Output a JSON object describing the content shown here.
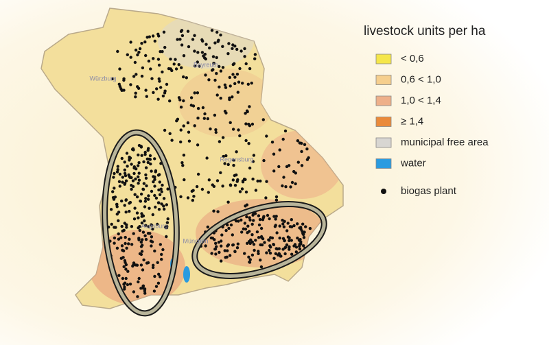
{
  "legend": {
    "title": "livestock units per ha",
    "items": [
      {
        "label": "< 0,6",
        "color": "#f5e64a"
      },
      {
        "label": "0,6 < 1,0",
        "color": "#f6cf8e"
      },
      {
        "label": "1,0 < 1,4",
        "color": "#eeb08a"
      },
      {
        "label": "≥ 1,4",
        "color": "#ea8a3a"
      },
      {
        "label": "municipal free area",
        "color": "#d8d6d2"
      },
      {
        "label": "water",
        "color": "#2a9be0"
      }
    ],
    "marker": {
      "label": "biogas plant"
    }
  },
  "places": [
    "Würzburg",
    "Bayreuth",
    "Regensburg",
    "Augsburg",
    "München"
  ]
}
